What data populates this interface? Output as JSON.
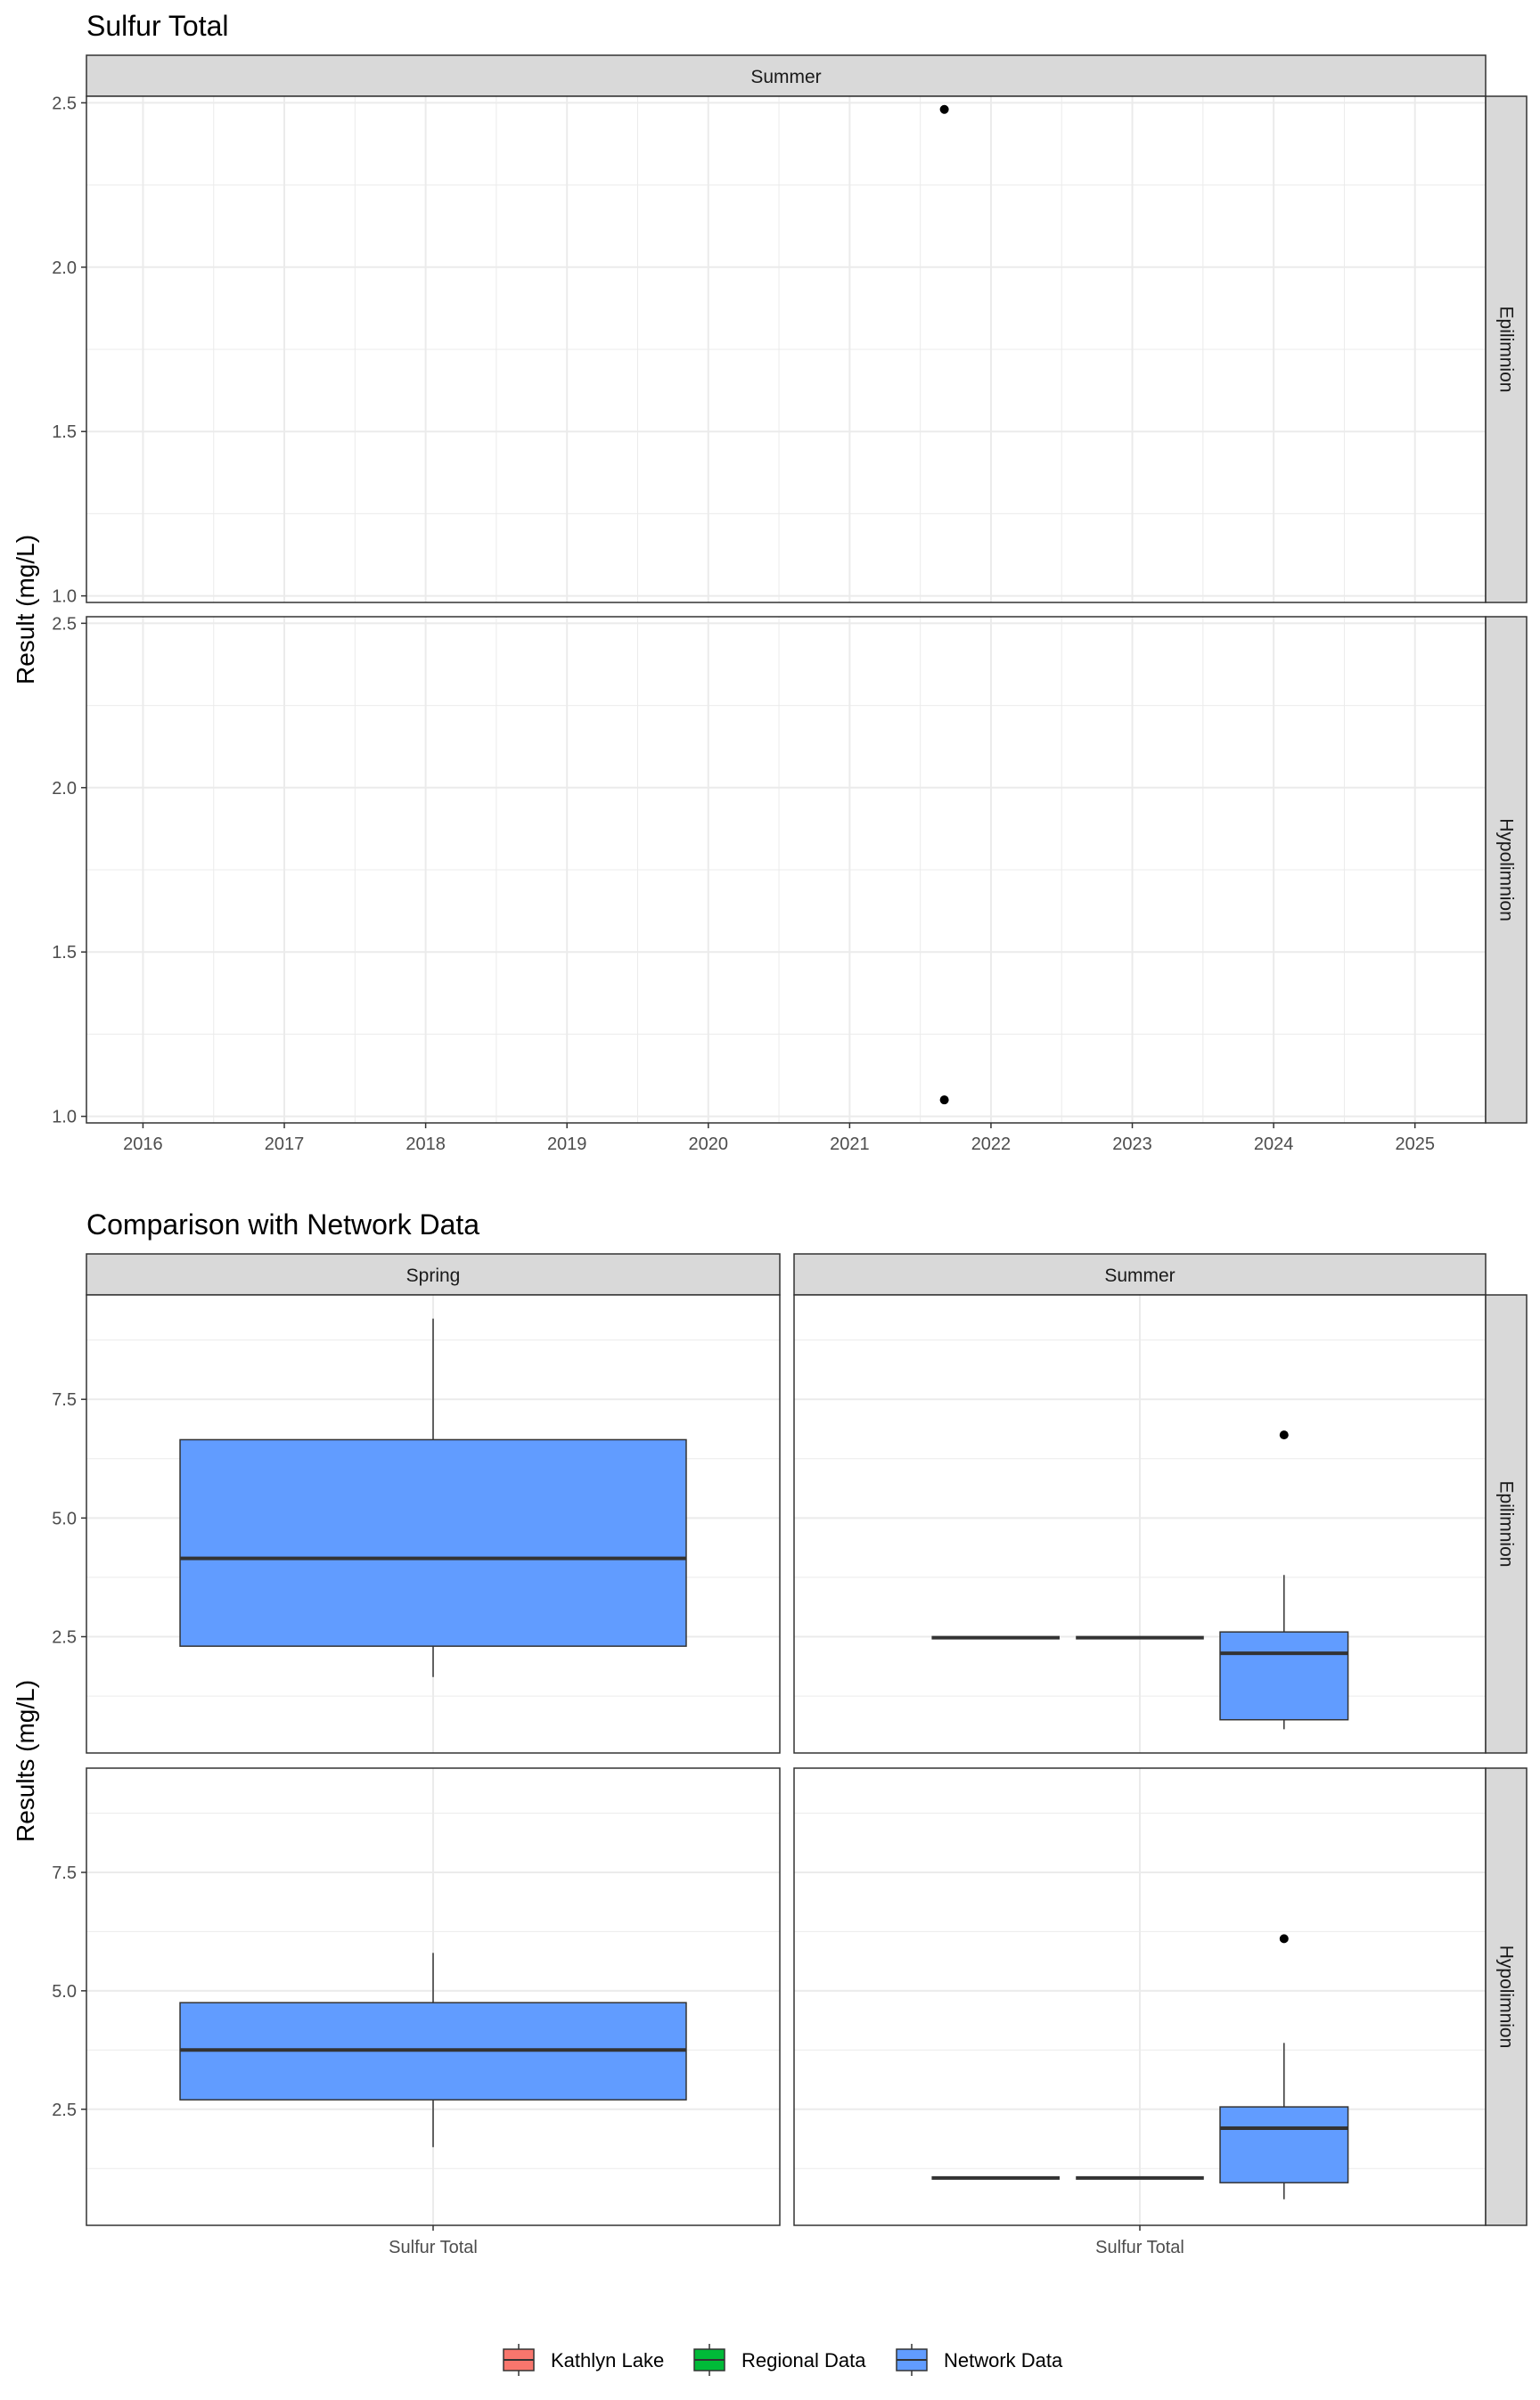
{
  "colors": {
    "kathlyn_lake": "#F8766D",
    "regional_data": "#00BA38",
    "network_data": "#619CFF",
    "strip_fill": "#D9D9D9",
    "grid": "#EBEBEB",
    "panel_border": "#333333"
  },
  "legend": {
    "items": [
      {
        "label": "Kathlyn Lake",
        "color": "#F8766D"
      },
      {
        "label": "Regional Data",
        "color": "#00BA38"
      },
      {
        "label": "Network Data",
        "color": "#619CFF"
      }
    ],
    "position": "bottom"
  },
  "chart_data": [
    {
      "type": "scatter",
      "title": "Sulfur Total",
      "ylabel": "Result (mg/L)",
      "xlabel": "",
      "column_facets": [
        "Summer"
      ],
      "row_facets": [
        "Epilimnion",
        "Hypolimnion"
      ],
      "x_ticks": [
        "2016",
        "2017",
        "2018",
        "2019",
        "2020",
        "2021",
        "2022",
        "2023",
        "2024",
        "2025"
      ],
      "xlim": [
        2015.6,
        2025.5
      ],
      "y_ticks": [
        "1.0",
        "1.5",
        "2.0",
        "2.5"
      ],
      "ylim": [
        0.98,
        2.52
      ],
      "grid": true,
      "points": [
        {
          "row": "Epilimnion",
          "column": "Summer",
          "x": 2021.67,
          "y": 2.48
        },
        {
          "row": "Hypolimnion",
          "column": "Summer",
          "x": 2021.67,
          "y": 1.05
        }
      ]
    },
    {
      "type": "box",
      "title": "Comparison with Network Data",
      "ylabel": "Results (mg/L)",
      "xlabel": "",
      "column_facets": [
        "Spring",
        "Summer"
      ],
      "row_facets": [
        "Epilimnion",
        "Hypolimnion"
      ],
      "categories": [
        "Sulfur Total"
      ],
      "y_ticks": [
        "2.5",
        "5.0",
        "7.5"
      ],
      "ylim": [
        0.05,
        9.7
      ],
      "grid": true,
      "boxes": [
        {
          "row": "Epilimnion",
          "column": "Spring",
          "series": "Network Data",
          "min": 1.65,
          "q1": 2.3,
          "median": 4.15,
          "q3": 6.65,
          "max": 9.2,
          "outliers": []
        },
        {
          "row": "Epilimnion",
          "column": "Summer",
          "series": "Kathlyn Lake",
          "min": 2.48,
          "q1": 2.48,
          "median": 2.48,
          "q3": 2.48,
          "max": 2.48,
          "outliers": []
        },
        {
          "row": "Epilimnion",
          "column": "Summer",
          "series": "Regional Data",
          "min": 2.48,
          "q1": 2.48,
          "median": 2.48,
          "q3": 2.48,
          "max": 2.48,
          "outliers": []
        },
        {
          "row": "Epilimnion",
          "column": "Summer",
          "series": "Network Data",
          "min": 0.55,
          "q1": 0.75,
          "median": 2.15,
          "q3": 2.6,
          "max": 3.8,
          "outliers": [
            6.75
          ]
        },
        {
          "row": "Hypolimnion",
          "column": "Spring",
          "series": "Network Data",
          "min": 1.7,
          "q1": 2.7,
          "median": 3.75,
          "q3": 4.75,
          "max": 5.8,
          "outliers": []
        },
        {
          "row": "Hypolimnion",
          "column": "Summer",
          "series": "Kathlyn Lake",
          "min": 1.05,
          "q1": 1.05,
          "median": 1.05,
          "q3": 1.05,
          "max": 1.05,
          "outliers": []
        },
        {
          "row": "Hypolimnion",
          "column": "Summer",
          "series": "Regional Data",
          "min": 1.05,
          "q1": 1.05,
          "median": 1.05,
          "q3": 1.05,
          "max": 1.05,
          "outliers": []
        },
        {
          "row": "Hypolimnion",
          "column": "Summer",
          "series": "Network Data",
          "min": 0.6,
          "q1": 0.95,
          "median": 2.1,
          "q3": 2.55,
          "max": 3.9,
          "outliers": [
            6.1
          ]
        }
      ]
    }
  ]
}
